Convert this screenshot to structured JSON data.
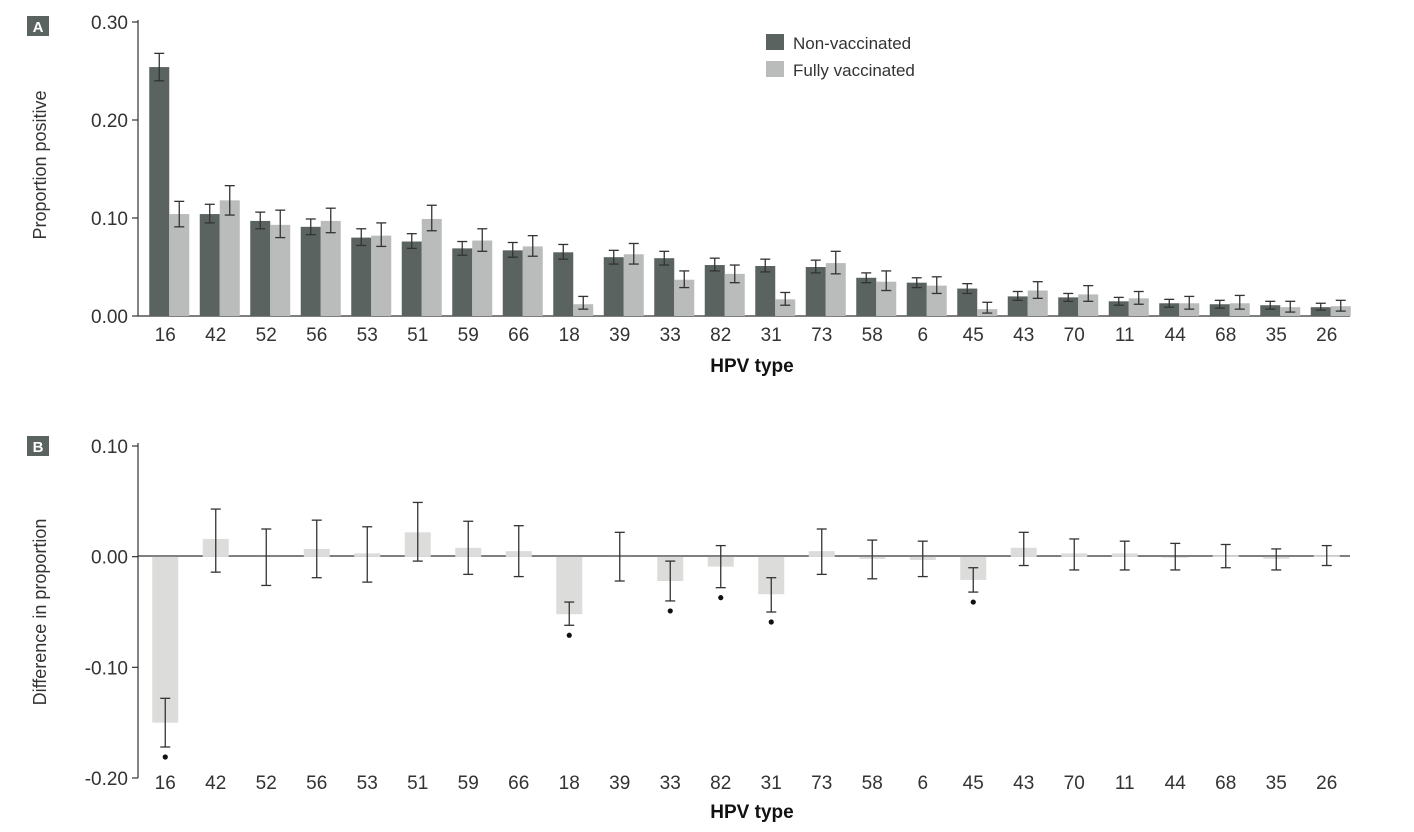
{
  "chart_data": [
    {
      "panel": "A",
      "type": "bar",
      "xlabel": "HPV type",
      "ylabel": "Proportion positive",
      "ylim": [
        0,
        0.3
      ],
      "yticks": [
        "0.00",
        "0.10",
        "0.20",
        "0.30"
      ],
      "legend_position": "top-center",
      "colors": {
        "Non-vaccinated": "#5a6360",
        "Fully vaccinated": "#b9bcbb"
      },
      "categories": [
        "16",
        "42",
        "52",
        "56",
        "53",
        "51",
        "59",
        "66",
        "18",
        "39",
        "33",
        "82",
        "31",
        "73",
        "58",
        "6",
        "45",
        "43",
        "70",
        "11",
        "44",
        "68",
        "35",
        "26"
      ],
      "series": [
        {
          "name": "Non-vaccinated",
          "values": [
            0.254,
            0.104,
            0.097,
            0.091,
            0.08,
            0.076,
            0.069,
            0.067,
            0.065,
            0.06,
            0.059,
            0.052,
            0.051,
            0.05,
            0.039,
            0.034,
            0.028,
            0.02,
            0.019,
            0.015,
            0.013,
            0.012,
            0.011,
            0.009
          ],
          "err_low": [
            0.24,
            0.095,
            0.089,
            0.083,
            0.072,
            0.069,
            0.062,
            0.06,
            0.058,
            0.053,
            0.052,
            0.046,
            0.045,
            0.044,
            0.034,
            0.029,
            0.023,
            0.016,
            0.015,
            0.011,
            0.009,
            0.008,
            0.007,
            0.006
          ],
          "err_high": [
            0.268,
            0.114,
            0.106,
            0.099,
            0.089,
            0.084,
            0.076,
            0.075,
            0.073,
            0.067,
            0.066,
            0.059,
            0.058,
            0.057,
            0.044,
            0.039,
            0.033,
            0.025,
            0.023,
            0.019,
            0.017,
            0.016,
            0.015,
            0.013
          ]
        },
        {
          "name": "Fully vaccinated",
          "values": [
            0.104,
            0.118,
            0.093,
            0.097,
            0.082,
            0.099,
            0.077,
            0.071,
            0.012,
            0.063,
            0.037,
            0.043,
            0.017,
            0.054,
            0.035,
            0.031,
            0.007,
            0.026,
            0.022,
            0.018,
            0.013,
            0.013,
            0.009,
            0.01
          ],
          "err_low": [
            0.091,
            0.103,
            0.08,
            0.085,
            0.071,
            0.087,
            0.066,
            0.061,
            0.007,
            0.053,
            0.029,
            0.034,
            0.011,
            0.043,
            0.026,
            0.023,
            0.003,
            0.018,
            0.015,
            0.012,
            0.007,
            0.007,
            0.004,
            0.005
          ],
          "err_high": [
            0.117,
            0.133,
            0.108,
            0.11,
            0.095,
            0.113,
            0.089,
            0.082,
            0.02,
            0.074,
            0.046,
            0.052,
            0.024,
            0.066,
            0.046,
            0.04,
            0.014,
            0.035,
            0.031,
            0.025,
            0.02,
            0.021,
            0.015,
            0.016
          ]
        }
      ]
    },
    {
      "panel": "B",
      "type": "bar",
      "xlabel": "HPV type",
      "ylabel": "Difference in proportion",
      "ylim": [
        -0.2,
        0.1
      ],
      "yticks": [
        "-0.20",
        "-0.10",
        "0.00",
        "0.10"
      ],
      "colors": {
        "bar": "#dcdddb"
      },
      "categories": [
        "16",
        "42",
        "52",
        "56",
        "53",
        "51",
        "59",
        "66",
        "18",
        "39",
        "33",
        "82",
        "31",
        "73",
        "58",
        "6",
        "45",
        "43",
        "70",
        "11",
        "44",
        "68",
        "35",
        "26"
      ],
      "values": [
        -0.15,
        0.016,
        0.0,
        0.007,
        0.003,
        0.022,
        0.008,
        0.005,
        -0.052,
        0.0,
        -0.022,
        -0.009,
        -0.034,
        0.005,
        -0.002,
        -0.003,
        -0.021,
        0.008,
        0.003,
        0.003,
        -0.001,
        0.001,
        -0.002,
        0.001
      ],
      "err_low": [
        -0.172,
        -0.014,
        -0.026,
        -0.019,
        -0.023,
        -0.004,
        -0.016,
        -0.018,
        -0.062,
        -0.022,
        -0.04,
        -0.028,
        -0.05,
        -0.016,
        -0.02,
        -0.018,
        -0.032,
        -0.008,
        -0.012,
        -0.012,
        -0.012,
        -0.01,
        -0.012,
        -0.008
      ],
      "err_high": [
        -0.128,
        0.043,
        0.025,
        0.033,
        0.027,
        0.049,
        0.032,
        0.028,
        -0.041,
        0.022,
        -0.004,
        0.01,
        -0.019,
        0.025,
        0.015,
        0.014,
        -0.01,
        0.022,
        0.016,
        0.014,
        0.012,
        0.011,
        0.007,
        0.01
      ],
      "significant": [
        "16",
        "18",
        "33",
        "82",
        "31",
        "45"
      ]
    }
  ]
}
